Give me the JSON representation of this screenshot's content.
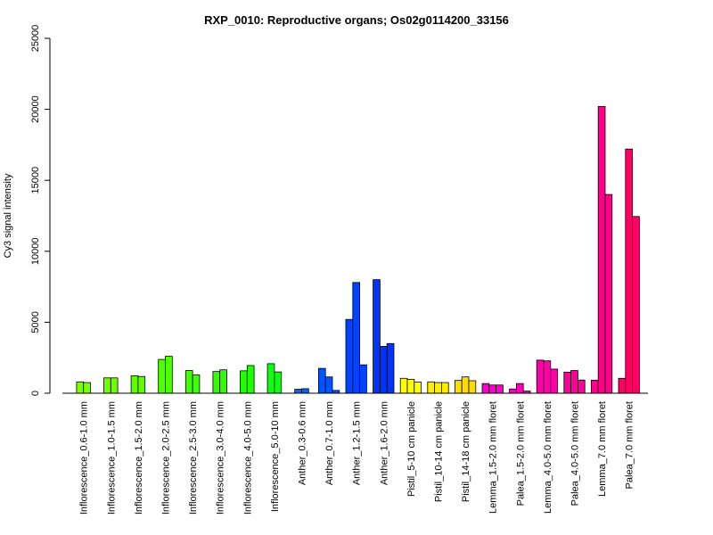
{
  "chart_data": {
    "type": "bar",
    "title": "RXP_0010: Reproductive organs; Os02g0114200_33156",
    "xlabel": "",
    "ylabel": "Cy3 signal intensity",
    "ylim": [
      0,
      25000
    ],
    "yticks": [
      0,
      5000,
      10000,
      15000,
      20000,
      25000
    ],
    "grid": false,
    "categories": [
      "Inflorescence_0.6-1.0 mm",
      "Inflorescence_1.0-1.5 mm",
      "Inflorescence_1.5-2.0 mm",
      "Inflorescence_2.0-2.5 mm",
      "Inflorescence_2.5-3.0 mm",
      "Inflorescence_3.0-4.0 mm",
      "Inflorescence_4.0-5.0 mm",
      "Inflorescence_5.0-10 mm",
      "Anther_0.3-0.6 mm",
      "Anther_0.7-1.0 mm",
      "Anther_1.2-1.5 mm",
      "Anther_1.6-2.0 mm",
      "Pistil_5-10 cm panicle",
      "Pistil_10-14 cm panicle",
      "Pistil_14-18 cm panicle",
      "Lemma_1.5-2.0 mm floret",
      "Palea_1.5-2.0 mm floret",
      "Lemma_4.0-5.0 mm floret",
      "Palea_4.0-5.0 mm floret",
      "Lemma_7.0 mm floret",
      "Palea_7.0 mm floret"
    ],
    "groups": [
      {
        "color": "#80ff00",
        "values": [
          800,
          750
        ]
      },
      {
        "color": "#70ff00",
        "values": [
          1080,
          1080
        ]
      },
      {
        "color": "#60ff00",
        "values": [
          1230,
          1180
        ]
      },
      {
        "color": "#50ff00",
        "values": [
          2380,
          2600
        ]
      },
      {
        "color": "#40ff00",
        "values": [
          1600,
          1300
        ]
      },
      {
        "color": "#30ff00",
        "values": [
          1530,
          1650
        ]
      },
      {
        "color": "#20ff00",
        "values": [
          1580,
          1950
        ]
      },
      {
        "color": "#10ff10",
        "values": [
          2080,
          1500
        ]
      },
      {
        "color": "#0066ff",
        "values": [
          280,
          320
        ]
      },
      {
        "color": "#0055ff",
        "values": [
          1750,
          1150,
          200
        ]
      },
      {
        "color": "#0044ff",
        "values": [
          5200,
          7800,
          2000
        ]
      },
      {
        "color": "#0033ff",
        "values": [
          8000,
          3300,
          3500
        ]
      },
      {
        "color": "#ffff00",
        "values": [
          1050,
          980,
          780
        ]
      },
      {
        "color": "#ffee00",
        "values": [
          800,
          750,
          750
        ]
      },
      {
        "color": "#ffdd00",
        "values": [
          900,
          1150,
          880
        ]
      },
      {
        "color": "#ff00cc",
        "values": [
          680,
          580,
          580
        ]
      },
      {
        "color": "#ff00bb",
        "values": [
          300,
          680,
          150
        ]
      },
      {
        "color": "#ff00aa",
        "values": [
          2330,
          2280,
          1700
        ]
      },
      {
        "color": "#ff0099",
        "values": [
          1480,
          1600,
          930
        ]
      },
      {
        "color": "#ff0088",
        "values": [
          920,
          20200,
          14000
        ]
      },
      {
        "color": "#ff0066",
        "values": [
          1050,
          17200,
          12450
        ]
      }
    ]
  }
}
